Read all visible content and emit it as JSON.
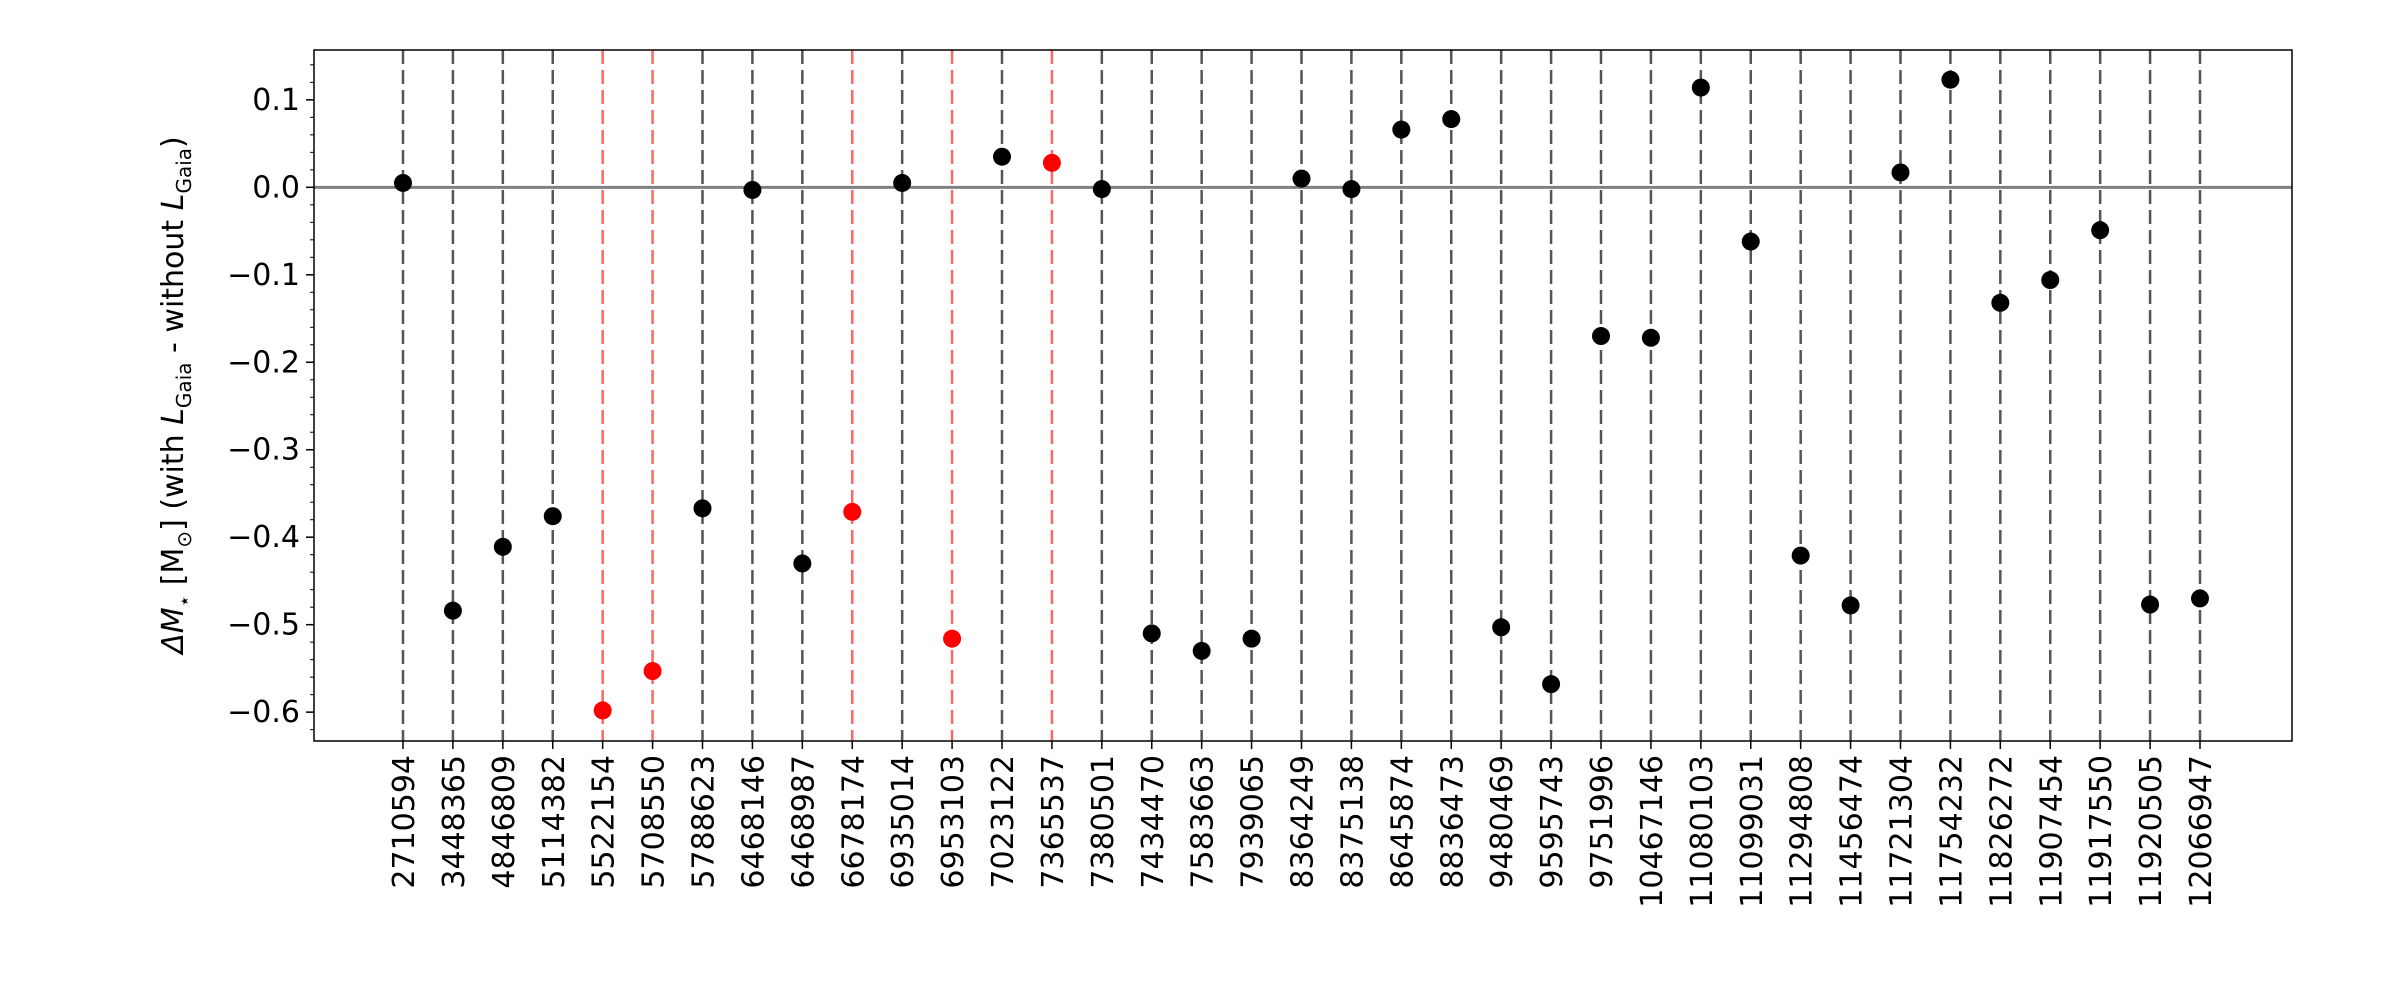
{
  "chart_data": {
    "type": "scatter",
    "ylabel": [
      "ΔM",
      "⋆",
      " [M",
      "⊙",
      "] (with ",
      "L",
      "Gaia",
      " - without ",
      "L",
      "Gaia",
      ")"
    ],
    "categories": [
      "2710594",
      "3448365",
      "4846809",
      "5114382",
      "5522154",
      "5708550",
      "5788623",
      "6468146",
      "6468987",
      "6678174",
      "6935014",
      "6953103",
      "7023122",
      "7365537",
      "7380501",
      "7434470",
      "7583663",
      "7939065",
      "8364249",
      "8375138",
      "8645874",
      "8836473",
      "9480469",
      "9595743",
      "9751996",
      "10467146",
      "11080103",
      "11099031",
      "11294808",
      "11456474",
      "11721304",
      "11754232",
      "11826272",
      "11907454",
      "11917550",
      "11920505",
      "12066947"
    ],
    "values": [
      0.005,
      -0.484,
      -0.411,
      -0.376,
      -0.598,
      -0.553,
      -0.367,
      -0.003,
      -0.43,
      -0.371,
      0.005,
      -0.516,
      0.035,
      0.028,
      -0.002,
      -0.51,
      -0.53,
      -0.516,
      0.01,
      -0.002,
      0.066,
      0.078,
      -0.503,
      -0.568,
      -0.17,
      -0.172,
      0.114,
      -0.062,
      -0.421,
      -0.478,
      0.017,
      0.123,
      -0.132,
      -0.106,
      -0.049,
      -0.477,
      -0.47
    ],
    "colors": [
      "#000000",
      "#000000",
      "#000000",
      "#000000",
      "#ff0000",
      "#ff0000",
      "#000000",
      "#000000",
      "#000000",
      "#ff0000",
      "#000000",
      "#ff0000",
      "#000000",
      "#ff0000",
      "#000000",
      "#000000",
      "#000000",
      "#000000",
      "#000000",
      "#000000",
      "#000000",
      "#000000",
      "#000000",
      "#000000",
      "#000000",
      "#000000",
      "#000000",
      "#000000",
      "#000000",
      "#000000",
      "#000000",
      "#000000",
      "#000000",
      "#000000",
      "#000000",
      "#000000",
      "#000000"
    ],
    "ylim": [
      -0.633,
      0.157
    ],
    "yticks": [
      0.1,
      {
        "value": 0,
        "label": "0.0"
      },
      {
        "value": -0.1,
        "label": "−0.1"
      },
      {
        "value": -0.2,
        "label": "−0.2"
      },
      {
        "value": -0.3,
        "label": "−0.3"
      },
      {
        "value": -0.4,
        "label": "−0.4"
      },
      {
        "value": -0.5,
        "label": "−0.5"
      },
      {
        "value": -0.6,
        "label": "−0.6"
      }
    ],
    "hline": 0
  }
}
